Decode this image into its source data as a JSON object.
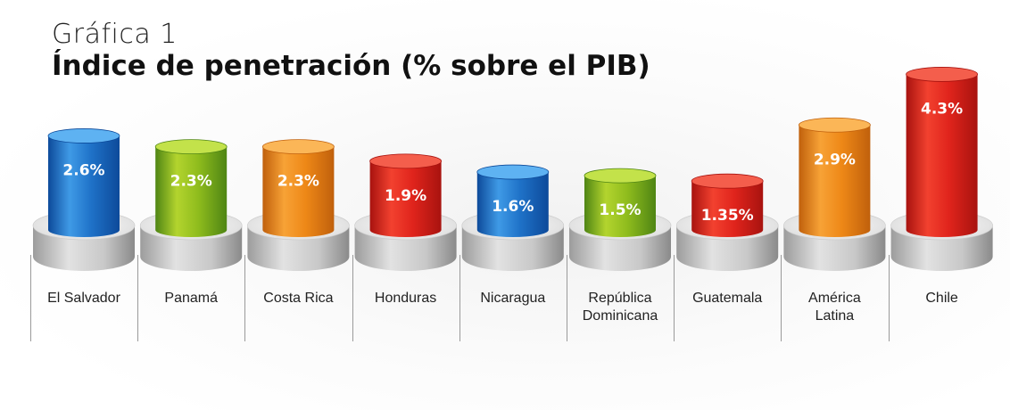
{
  "header": {
    "subtitle": "Gráfica 1",
    "title": "Índice de penetración (% sobre el PIB)"
  },
  "chart_data": {
    "type": "bar",
    "title": "Índice de penetración (% sobre el PIB)",
    "subtitle": "Gráfica 1",
    "xlabel": "",
    "ylabel": "",
    "categories": [
      [
        "El Salvador"
      ],
      [
        "Panamá"
      ],
      [
        "Costa Rica"
      ],
      [
        "Honduras"
      ],
      [
        "Nicaragua"
      ],
      [
        "República",
        "Dominicana"
      ],
      [
        "Guatemala"
      ],
      [
        "América",
        "Latina"
      ],
      [
        "Chile"
      ]
    ],
    "values": [
      2.6,
      2.3,
      2.3,
      1.9,
      1.6,
      1.5,
      1.35,
      2.9,
      4.3
    ],
    "value_labels": [
      "2.6%",
      "2.3%",
      "2.3%",
      "1.9%",
      "1.6%",
      "1.5%",
      "1.35%",
      "2.9%",
      "4.3%"
    ],
    "colors": [
      "blue",
      "green",
      "orange",
      "red",
      "blue",
      "green",
      "red",
      "orange",
      "red"
    ],
    "palette": {
      "blue": {
        "light": "#3f9ae6",
        "mid": "#1f72c8",
        "dark": "#0d4a9a",
        "top": "#5eb2f2"
      },
      "green": {
        "light": "#b3d42e",
        "mid": "#8fbc1d",
        "dark": "#4f8514",
        "top": "#c3e24a"
      },
      "orange": {
        "light": "#f7a236",
        "mid": "#ee8817",
        "dark": "#c0600c",
        "top": "#fbb657"
      },
      "red": {
        "light": "#f2412f",
        "mid": "#e0241c",
        "dark": "#a8130f",
        "top": "#f45e4c"
      }
    },
    "ylim": [
      0,
      4.5
    ],
    "grid": false,
    "legend": "none"
  }
}
